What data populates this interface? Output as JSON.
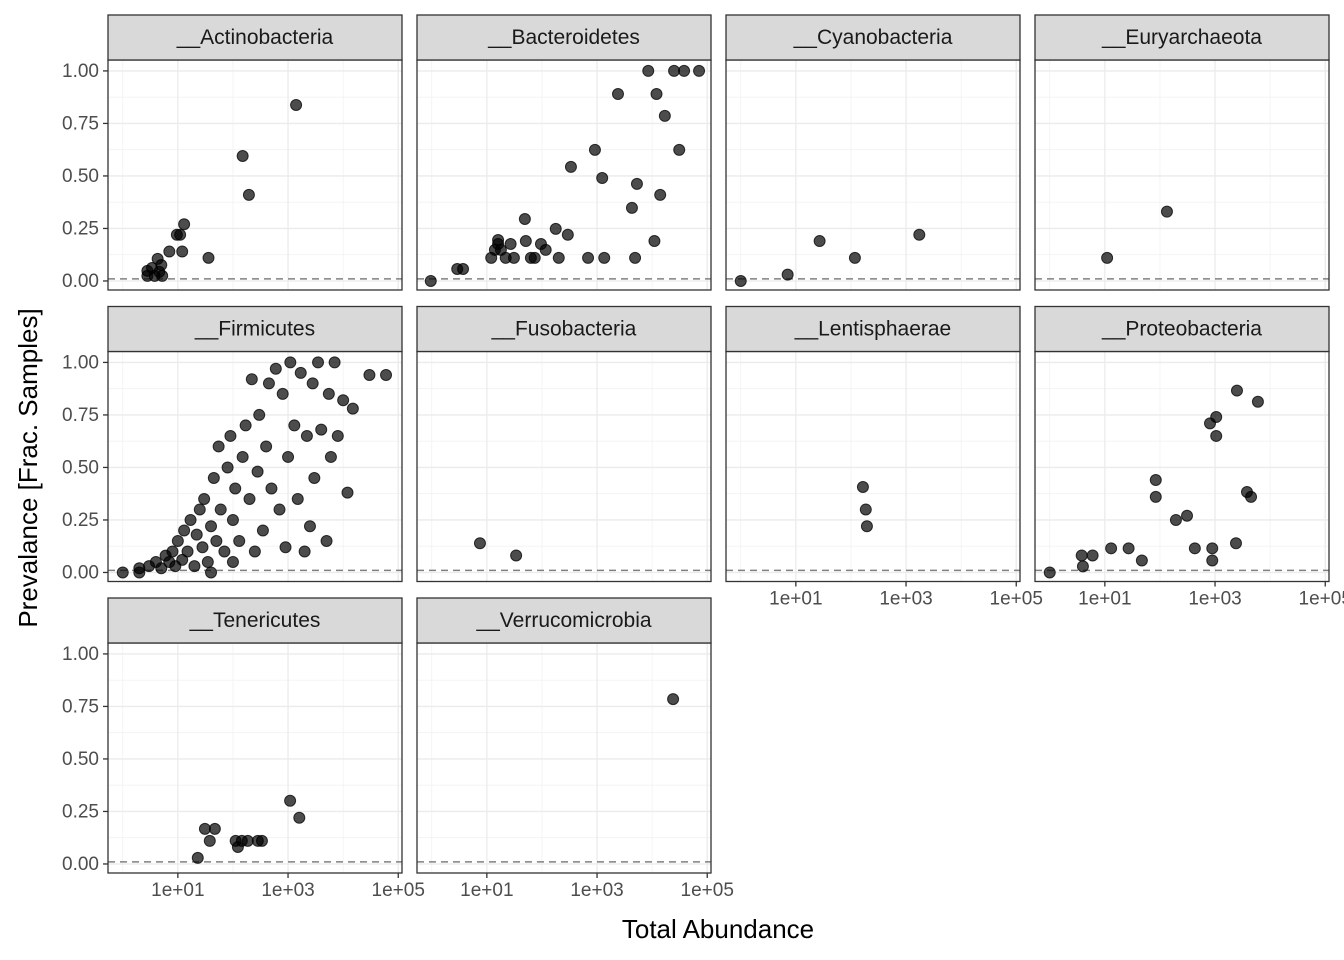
{
  "chart_data": {
    "type": "scatter",
    "xlabel": "Total Abundance",
    "ylabel": "Prevalance [Frac. Samples]",
    "xscale": "log",
    "xlim": [
      0.54,
      117000
    ],
    "ylim": [
      -0.043,
      1.052
    ],
    "xticks": [
      {
        "value": 10,
        "label": "1e+01"
      },
      {
        "value": 1000,
        "label": "1e+03"
      },
      {
        "value": 100000,
        "label": "1e+05"
      }
    ],
    "yticks": [
      {
        "value": 0,
        "label": "0.00"
      },
      {
        "value": 0.25,
        "label": "0.25"
      },
      {
        "value": 0.5,
        "label": "0.50"
      },
      {
        "value": 0.75,
        "label": "0.75"
      },
      {
        "value": 1,
        "label": "1.00"
      }
    ],
    "grid": true,
    "reference_line": 0.01,
    "color": "#000000",
    "facets": [
      {
        "title": "__Actinobacteria",
        "x": [
          150,
          195,
          1400,
          36,
          13,
          9.6,
          11,
          12,
          7,
          5,
          4.3,
          2.8,
          2.8,
          3.8,
          4.6,
          5.2,
          3.4
        ],
        "y": [
          0.595,
          0.41,
          0.838,
          0.11,
          0.27,
          0.22,
          0.22,
          0.14,
          0.14,
          0.076,
          0.105,
          0.048,
          0.024,
          0.024,
          0.043,
          0.024,
          0.062
        ]
      },
      {
        "title": "__Bacteroidetes",
        "x": [
          0.96,
          2.9,
          3.7,
          12,
          16,
          18,
          16,
          22,
          27,
          31,
          49,
          51,
          63,
          74,
          96,
          117,
          178,
          202,
          295,
          336,
          687,
          916,
          1240,
          1350,
          2400,
          4300,
          4900,
          5300,
          8500,
          12000,
          14000,
          17000,
          11000,
          25000,
          38000,
          31000,
          71000,
          14
        ],
        "y": [
          0,
          0.057,
          0.057,
          0.11,
          0.176,
          0.148,
          0.195,
          0.11,
          0.176,
          0.11,
          0.295,
          0.19,
          0.11,
          0.11,
          0.176,
          0.148,
          0.248,
          0.11,
          0.22,
          0.543,
          0.11,
          0.624,
          0.49,
          0.11,
          0.89,
          0.348,
          0.11,
          0.462,
          1,
          0.89,
          0.41,
          0.786,
          0.19,
          1,
          1,
          0.624,
          1,
          0.148
        ]
      },
      {
        "title": "__Cyanobacteria",
        "x": [
          1,
          7.1,
          27,
          118,
          1740
        ],
        "y": [
          0,
          0.03,
          0.19,
          0.11,
          0.22
        ]
      },
      {
        "title": "__Euryarchaeota",
        "x": [
          11,
          134
        ],
        "y": [
          0.11,
          0.33
        ]
      },
      {
        "title": "__Firmicutes",
        "x": [
          1,
          2,
          3,
          4,
          5,
          6,
          7,
          8,
          9,
          10,
          12,
          13,
          15,
          17,
          20,
          22,
          25,
          28,
          30,
          35,
          40,
          45,
          50,
          55,
          60,
          70,
          80,
          90,
          100,
          110,
          130,
          150,
          170,
          200,
          220,
          250,
          280,
          300,
          350,
          400,
          450,
          500,
          600,
          700,
          800,
          900,
          1000,
          1100,
          1300,
          1500,
          1700,
          2000,
          2200,
          2500,
          2800,
          3000,
          3500,
          4000,
          5000,
          5500,
          6000,
          7000,
          8000,
          10000,
          12000,
          15000,
          30000,
          60000,
          2,
          40,
          100
        ],
        "y": [
          0,
          0.02,
          0.03,
          0.05,
          0.02,
          0.08,
          0.05,
          0.1,
          0.03,
          0.15,
          0.06,
          0.2,
          0.1,
          0.25,
          0.03,
          0.18,
          0.3,
          0.12,
          0.35,
          0.05,
          0.22,
          0.45,
          0.15,
          0.6,
          0.3,
          0.1,
          0.5,
          0.65,
          0.25,
          0.4,
          0.15,
          0.55,
          0.7,
          0.35,
          0.92,
          0.1,
          0.48,
          0.75,
          0.2,
          0.6,
          0.9,
          0.4,
          0.97,
          0.3,
          0.85,
          0.12,
          0.55,
          1,
          0.7,
          0.35,
          0.95,
          0.1,
          0.65,
          0.22,
          0.9,
          0.45,
          1,
          0.68,
          0.15,
          0.85,
          0.55,
          1,
          0.65,
          0.82,
          0.38,
          0.78,
          0.94,
          0.94,
          0,
          0,
          0.05
        ]
      },
      {
        "title": "__Fusobacteria",
        "x": [
          7.5,
          34
        ],
        "y": [
          0.139,
          0.081
        ]
      },
      {
        "title": "__Lentisphaerae",
        "x": [
          165,
          186,
          195
        ],
        "y": [
          0.407,
          0.3,
          0.22
        ]
      },
      {
        "title": "__Proteobacteria",
        "x": [
          1,
          3.8,
          4,
          6,
          13,
          27,
          47,
          84,
          84,
          195,
          310,
          430,
          810,
          1050,
          1050,
          890,
          890,
          2400,
          2500,
          3800,
          4500,
          6000
        ],
        "y": [
          0,
          0.081,
          0.029,
          0.081,
          0.115,
          0.115,
          0.057,
          0.44,
          0.36,
          0.25,
          0.27,
          0.115,
          0.71,
          0.65,
          0.74,
          0.115,
          0.057,
          0.139,
          0.866,
          0.383,
          0.36,
          0.813
        ]
      },
      {
        "title": "__Tenericutes",
        "x": [
          23,
          31,
          38,
          47,
          112,
          123,
          145,
          186,
          283,
          336,
          1090,
          1600
        ],
        "y": [
          0.029,
          0.167,
          0.11,
          0.167,
          0.11,
          0.081,
          0.11,
          0.11,
          0.11,
          0.11,
          0.301,
          0.22
        ]
      },
      {
        "title": "__Verrucomicrobia",
        "x": [
          24000
        ],
        "y": [
          0.785
        ]
      }
    ]
  }
}
